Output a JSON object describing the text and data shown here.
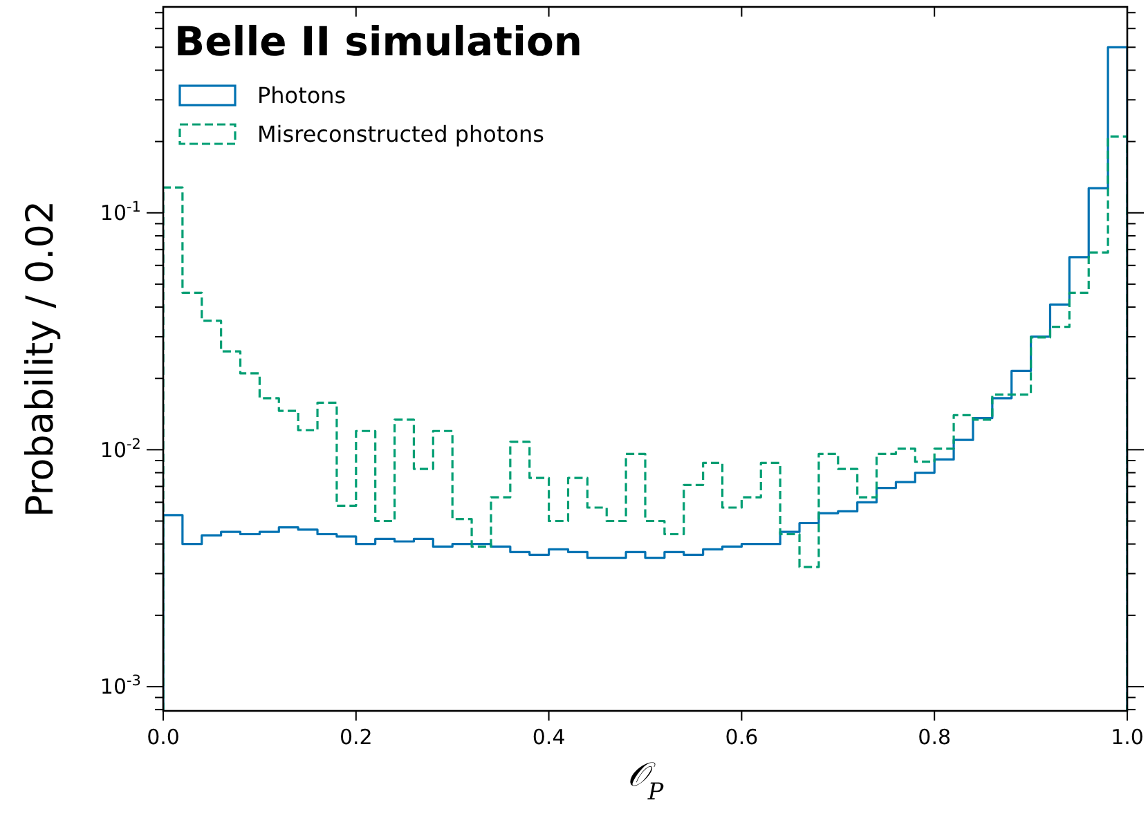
{
  "chart_data": {
    "type": "histogram",
    "title": "Belle II simulation",
    "xlabel": "𝒪$_{P}$",
    "ylabel": "Probability / 0.02",
    "bins": [
      0,
      0.02,
      0.04,
      0.06,
      0.08,
      0.1,
      0.12,
      0.14,
      0.16,
      0.18,
      0.2,
      0.22,
      0.24,
      0.26,
      0.28,
      0.3,
      0.32,
      0.34,
      0.36,
      0.38,
      0.4,
      0.42,
      0.44,
      0.46,
      0.48,
      0.5,
      0.52,
      0.54,
      0.56,
      0.58,
      0.6,
      0.62,
      0.64,
      0.66,
      0.68,
      0.7,
      0.72,
      0.74,
      0.76,
      0.78,
      0.8,
      0.82,
      0.84,
      0.86,
      0.88,
      0.9,
      0.92,
      0.94,
      0.96,
      0.98,
      1
    ],
    "series": [
      {
        "name": "Photons",
        "color": "#0072b2",
        "line_style": "solid",
        "values": [
          0.0053,
          0.004,
          0.00435,
          0.0045,
          0.0044,
          0.0045,
          0.0047,
          0.0046,
          0.0044,
          0.0043,
          0.004,
          0.0042,
          0.0041,
          0.0042,
          0.0039,
          0.004,
          0.004,
          0.0039,
          0.0037,
          0.0036,
          0.0038,
          0.0037,
          0.0035,
          0.0035,
          0.0037,
          0.0035,
          0.0037,
          0.0036,
          0.0038,
          0.0039,
          0.004,
          0.004,
          0.0045,
          0.0049,
          0.0054,
          0.0055,
          0.006,
          0.0069,
          0.0073,
          0.008,
          0.0091,
          0.011,
          0.0136,
          0.0165,
          0.0215,
          0.03,
          0.041,
          0.065,
          0.127,
          0.5
        ]
      },
      {
        "name": "Misreconstructed photons",
        "color": "#009e73",
        "line_style": "dashed",
        "values": [
          0.128,
          0.046,
          0.035,
          0.026,
          0.021,
          0.0165,
          0.0146,
          0.0121,
          0.0158,
          0.0058,
          0.012,
          0.005,
          0.0134,
          0.0083,
          0.012,
          0.0051,
          0.0039,
          0.0063,
          0.0108,
          0.0076,
          0.005,
          0.0076,
          0.0057,
          0.005,
          0.0096,
          0.005,
          0.0044,
          0.0071,
          0.0088,
          0.0057,
          0.0063,
          0.0088,
          0.0044,
          0.0032,
          0.0096,
          0.0083,
          0.0063,
          0.0096,
          0.0101,
          0.0089,
          0.0101,
          0.014,
          0.0134,
          0.0171,
          0.0171,
          0.0298,
          0.033,
          0.046,
          0.068,
          0.21
        ]
      }
    ],
    "log": "y",
    "xlim": [
      0,
      1
    ],
    "ylim": [
      0.00079,
      0.74
    ],
    "xticks": [
      {
        "value": 0,
        "label": "0.0"
      },
      {
        "value": 0.2,
        "label": "0.2"
      },
      {
        "value": 0.4,
        "label": "0.4"
      },
      {
        "value": 0.6,
        "label": "0.6"
      },
      {
        "value": 0.8,
        "label": "0.8"
      },
      {
        "value": 1,
        "label": "1.0"
      }
    ],
    "yticks": [
      {
        "value": 0.001,
        "label": "10$^{-3}$"
      },
      {
        "value": 0.01,
        "label": "10$^{-2}$"
      },
      {
        "value": 0.1,
        "label": "10$^{-1}$"
      }
    ],
    "grid": false,
    "legend": "top left"
  }
}
